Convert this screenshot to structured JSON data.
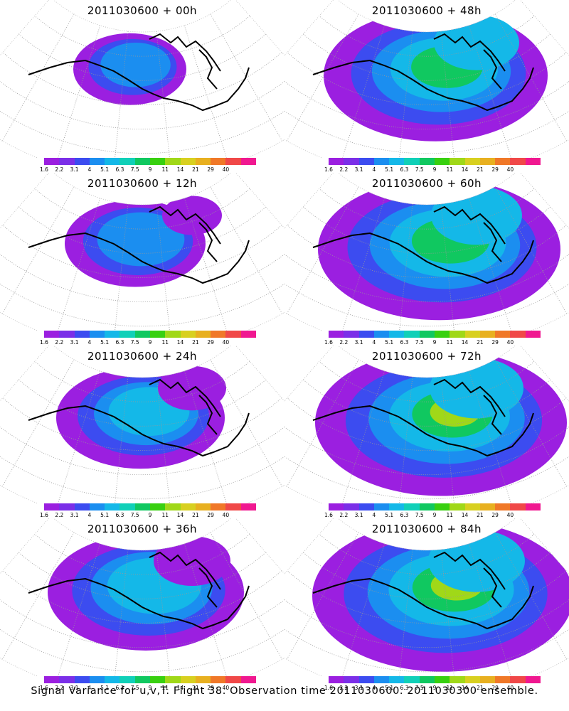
{
  "panels": [
    {
      "title": "2011030600 + 00h"
    },
    {
      "title": "2011030600 + 48h"
    },
    {
      "title": "2011030600 + 12h"
    },
    {
      "title": "2011030600 + 60h"
    },
    {
      "title": "2011030600 + 24h"
    },
    {
      "title": "2011030600 + 72h"
    },
    {
      "title": "2011030600 + 36h"
    },
    {
      "title": "2011030600 + 84h"
    }
  ],
  "colorbar": {
    "labels": [
      "1.6",
      "2.2",
      "3.1",
      "4",
      "5.1",
      "6.3",
      "7.5",
      "9",
      "11",
      "14",
      "21",
      "29",
      "40"
    ],
    "colors": [
      "#9b1fe0",
      "#7b2fe8",
      "#3c4cf0",
      "#1b8ef0",
      "#14b8e8",
      "#10d0b8",
      "#10c860",
      "#38d010",
      "#a0d818",
      "#d8d020",
      "#e8b020",
      "#f07828",
      "#f04848",
      "#f01890"
    ]
  },
  "caption": "Signal Variance for u,v,T. Flight 38. Observation time 2011030600. 2011030300 ensemble."
}
